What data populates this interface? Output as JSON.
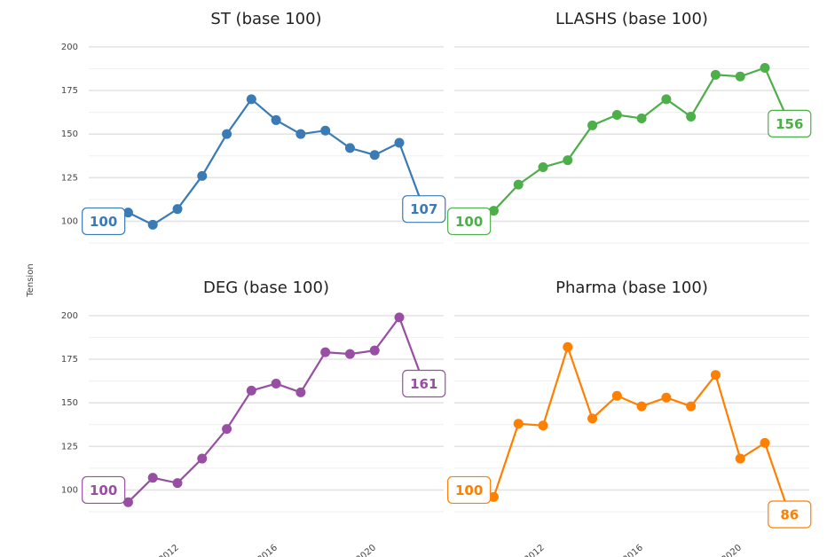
{
  "y_axis_label": "Tension",
  "chart_data": [
    {
      "type": "line",
      "title": "ST (base 100)",
      "color": "#3a7ab5",
      "x": [
        2009,
        2010,
        2011,
        2012,
        2013,
        2014,
        2015,
        2016,
        2017,
        2018,
        2019,
        2020,
        2021,
        2022
      ],
      "values": [
        100,
        105,
        98,
        107,
        126,
        150,
        170,
        158,
        150,
        152,
        142,
        138,
        145,
        107
      ],
      "xlim": [
        2008.4,
        2022.8
      ],
      "ylim": [
        87,
        204
      ],
      "xticks": [
        2012,
        2016,
        2020
      ],
      "yticks": [
        100,
        125,
        150,
        175,
        200
      ]
    },
    {
      "type": "line",
      "title": "LLASHS (base 100)",
      "color": "#4daf4a",
      "x": [
        2009,
        2010,
        2011,
        2012,
        2013,
        2014,
        2015,
        2016,
        2017,
        2018,
        2019,
        2020,
        2021,
        2022
      ],
      "values": [
        100,
        106,
        121,
        131,
        135,
        155,
        161,
        159,
        170,
        160,
        184,
        183,
        188,
        156
      ],
      "xlim": [
        2008.4,
        2022.8
      ],
      "ylim": [
        87,
        204
      ],
      "xticks": [
        2012,
        2016,
        2020
      ],
      "yticks": [
        100,
        125,
        150,
        175,
        200
      ]
    },
    {
      "type": "line",
      "title": "DEG (base 100)",
      "color": "#984ea3",
      "x": [
        2009,
        2010,
        2011,
        2012,
        2013,
        2014,
        2015,
        2016,
        2017,
        2018,
        2019,
        2020,
        2021,
        2022
      ],
      "values": [
        100,
        93,
        107,
        104,
        118,
        135,
        157,
        161,
        156,
        179,
        178,
        180,
        199,
        161
      ],
      "xlim": [
        2008.4,
        2022.8
      ],
      "ylim": [
        87,
        204
      ],
      "xticks": [
        2012,
        2016,
        2020
      ],
      "yticks": [
        100,
        125,
        150,
        175,
        200
      ]
    },
    {
      "type": "line",
      "title": "Pharma (base 100)",
      "color": "#ff7f00",
      "x": [
        2009,
        2010,
        2011,
        2012,
        2013,
        2014,
        2015,
        2016,
        2017,
        2018,
        2019,
        2020,
        2021,
        2022
      ],
      "values": [
        100,
        96,
        138,
        137,
        182,
        141,
        154,
        148,
        153,
        148,
        166,
        118,
        127,
        86
      ],
      "xlim": [
        2008.4,
        2022.8
      ],
      "ylim": [
        87,
        204
      ],
      "xticks": [
        2012,
        2016,
        2020
      ],
      "yticks": [
        100,
        125,
        150,
        175,
        200
      ]
    }
  ]
}
